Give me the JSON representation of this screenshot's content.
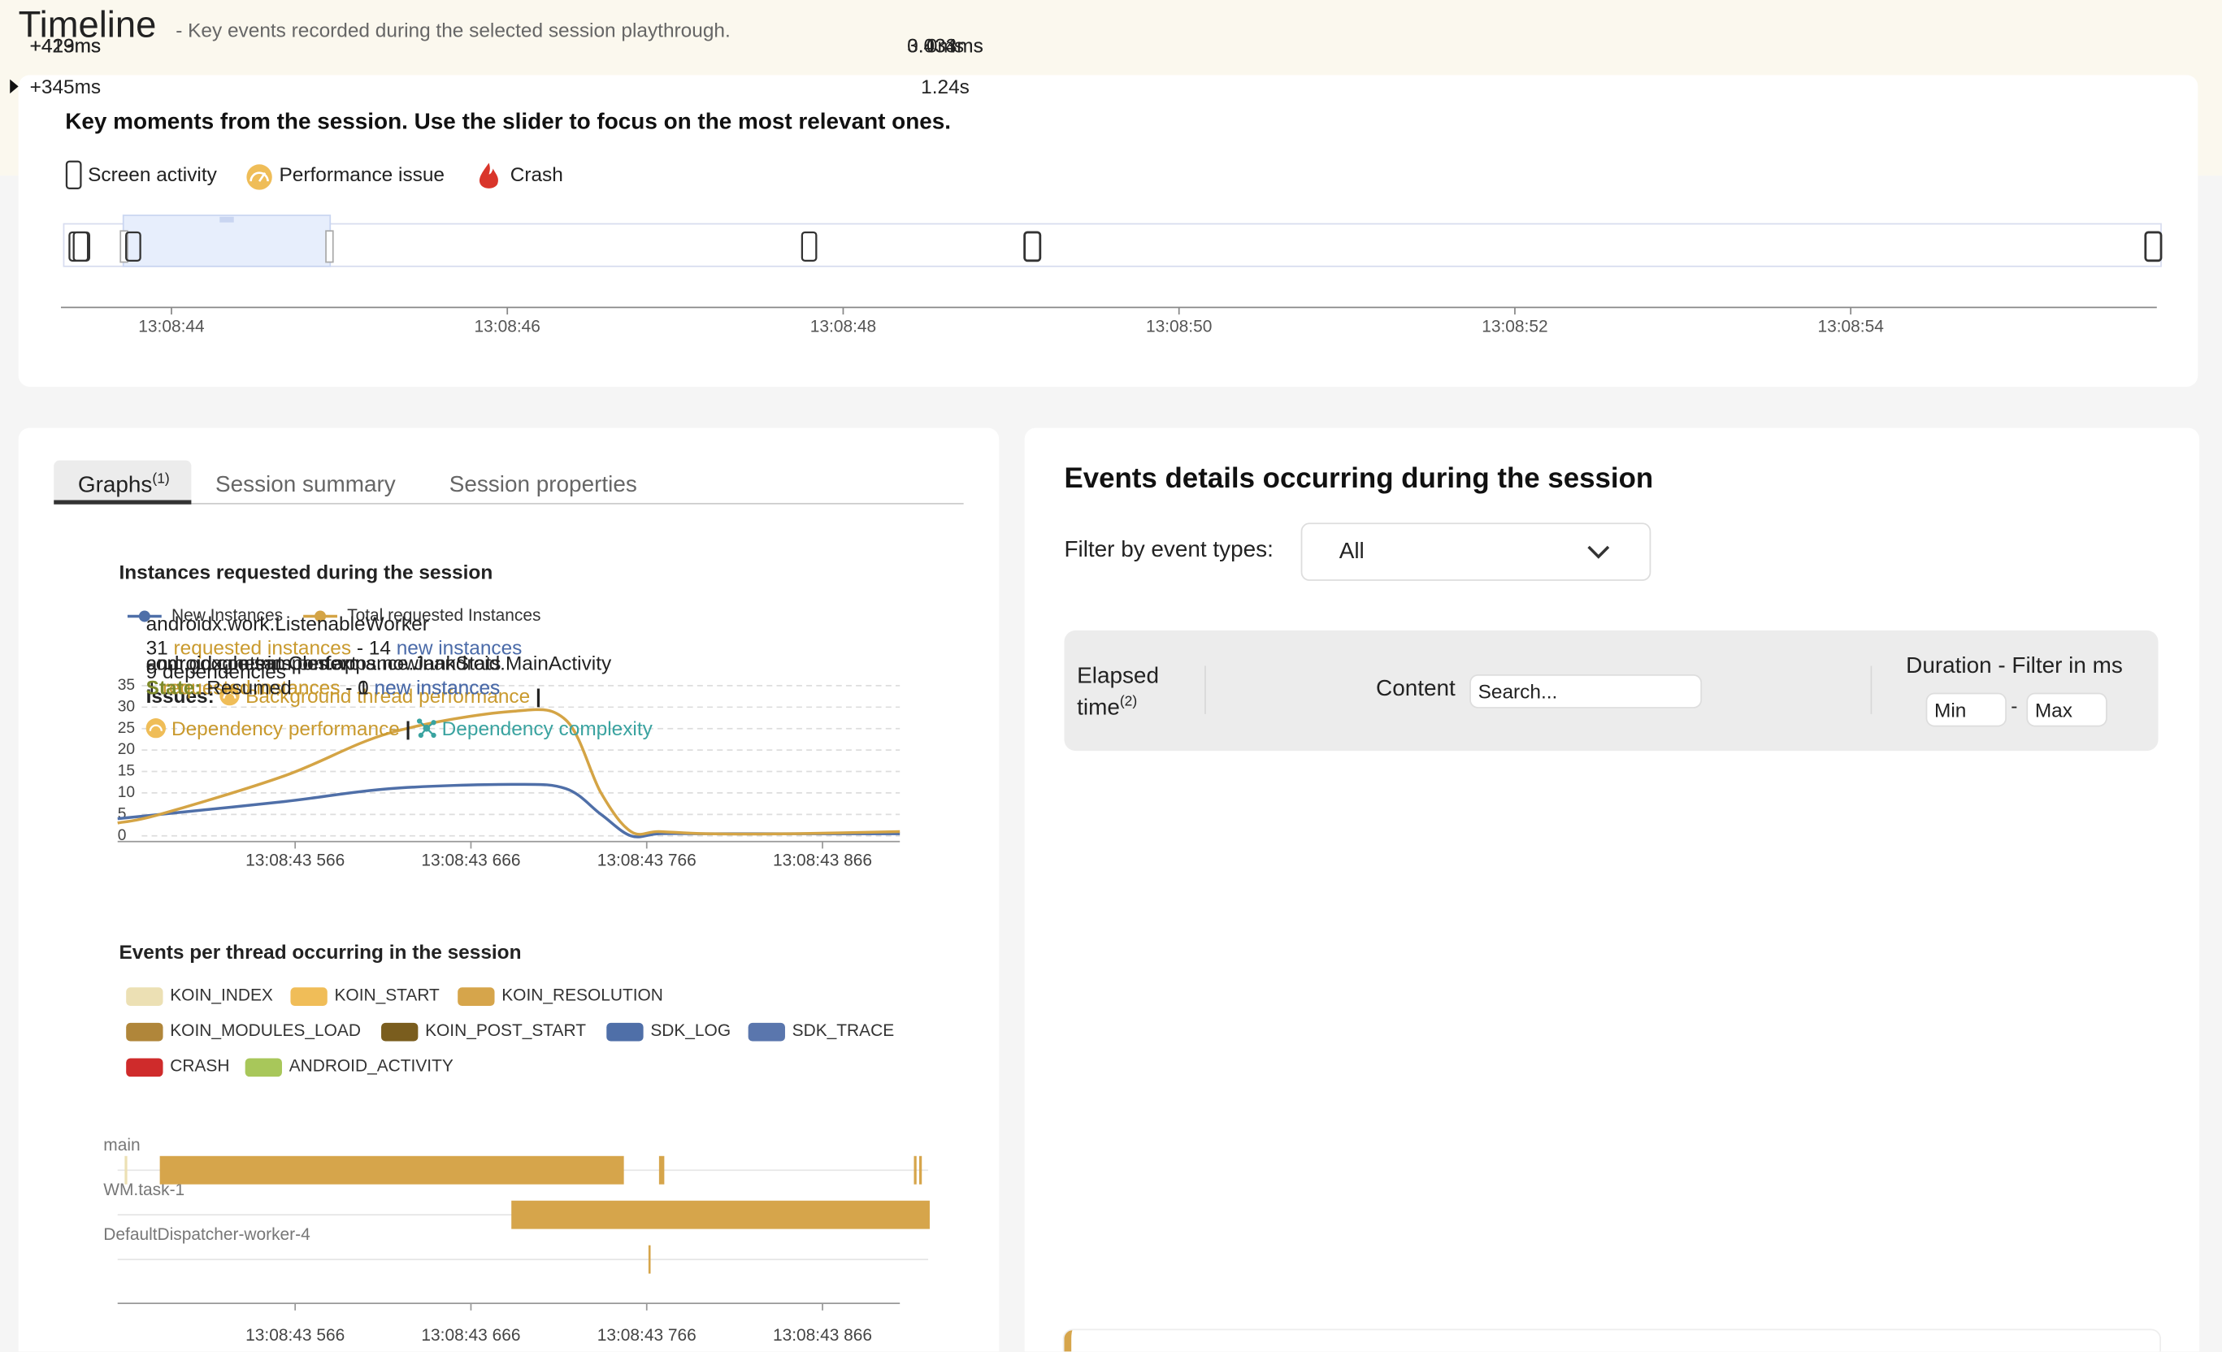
{
  "header": {
    "title": "Timeline",
    "subtitle": "- Key events recorded during the selected session playthrough."
  },
  "timeline": {
    "heading": "Key moments from the session. Use the slider to focus on the most relevant ones.",
    "legend": [
      "Screen activity",
      "Performance issue",
      "Crash"
    ],
    "ticks": [
      "13:08:44",
      "13:08:46",
      "13:08:48",
      "13:08:50",
      "13:08:52",
      "13:08:54"
    ]
  },
  "tabs": {
    "items": [
      "Graphs",
      "Session summary",
      "Session properties"
    ],
    "graphs_note": "(1)"
  },
  "chart_data": [
    {
      "type": "line",
      "title": "Instances requested during the session",
      "x": [
        465,
        489,
        560,
        620,
        689,
        720,
        740,
        757,
        773,
        800,
        850,
        910
      ],
      "series": [
        {
          "name": "New Instances",
          "color": "#4f6fa8",
          "values": [
            4,
            5,
            8,
            11,
            12,
            11,
            5,
            0,
            0.5,
            0.5,
            0.5,
            0.5
          ]
        },
        {
          "name": "Total requested Instances",
          "color": "#d4a445",
          "values": [
            3,
            5,
            14,
            24,
            29,
            27,
            10,
            1,
            1,
            0.5,
            0.5,
            1
          ]
        }
      ],
      "xlim": [
        465,
        910
      ],
      "xticks": [
        {
          "value": 566,
          "label": "13:08:43 566"
        },
        {
          "value": 666,
          "label": "13:08:43 666"
        },
        {
          "value": 766,
          "label": "13:08:43 766"
        },
        {
          "value": 866,
          "label": "13:08:43 866"
        }
      ],
      "ylim": [
        0,
        35
      ],
      "yticks": [
        0,
        5,
        10,
        15,
        20,
        25,
        30,
        35
      ],
      "grid": true
    },
    {
      "type": "gantt",
      "title": "Events per thread occurring in the session",
      "legend": [
        {
          "name": "KOIN_INDEX",
          "color": "#ece0b4"
        },
        {
          "name": "KOIN_START",
          "color": "#f0bd58"
        },
        {
          "name": "KOIN_RESOLUTION",
          "color": "#d6a54b"
        },
        {
          "name": "KOIN_MODULES_LOAD",
          "color": "#b0863a"
        },
        {
          "name": "KOIN_POST_START",
          "color": "#7a5d1e"
        },
        {
          "name": "SDK_LOG",
          "color": "#4f6fa8"
        },
        {
          "name": "SDK_TRACE",
          "color": "#5a76ad"
        },
        {
          "name": "CRASH",
          "color": "#cf2b2b"
        },
        {
          "name": "ANDROID_ACTIVITY",
          "color": "#a8c75a"
        }
      ],
      "threads": [
        "main",
        "WM.task-1",
        "DefaultDispatcher-worker-4"
      ],
      "segments": [
        {
          "thread": "main",
          "kind": "KOIN_INDEX",
          "start": 469,
          "end": 470.5
        },
        {
          "thread": "main",
          "kind": "KOIN_RESOLUTION",
          "start": 489,
          "end": 753
        },
        {
          "thread": "main",
          "kind": "KOIN_RESOLUTION",
          "start": 773,
          "end": 776
        },
        {
          "thread": "main",
          "kind": "KOIN_RESOLUTION",
          "start": 918,
          "end": 919.5
        },
        {
          "thread": "main",
          "kind": "KOIN_RESOLUTION",
          "start": 921,
          "end": 922.5
        },
        {
          "thread": "WM.task-1",
          "kind": "KOIN_RESOLUTION",
          "start": 689,
          "end": 927
        },
        {
          "thread": "DefaultDispatcher-worker-4",
          "kind": "KOIN_RESOLUTION",
          "start": 767,
          "end": 768
        }
      ],
      "xlim": [
        465,
        910
      ],
      "xticks": [
        {
          "value": 566,
          "label": "13:08:43 566"
        },
        {
          "value": 666,
          "label": "13:08:43 666"
        },
        {
          "value": 766,
          "label": "13:08:43 766"
        },
        {
          "value": 866,
          "label": "13:08:43 866"
        }
      ]
    }
  ],
  "events": {
    "title": "Events details occurring during the session",
    "filter_label": "Filter by event types:",
    "filter_value": "All",
    "columns": {
      "elapsed": "Elapsed time",
      "elapsed_note": "(2)",
      "content": "Content",
      "search": "Search...",
      "duration": "Duration - Filter in ms",
      "min": "Min",
      "max": "Max"
    },
    "separator": "-",
    "pipe": "|",
    "rows": [
      {
        "elapsed": "+345ms",
        "name": "androidx.work.ListenableWorker",
        "requested": "31",
        "requested_label": "requested instances",
        "new": "14",
        "new_label": "new instances",
        "dependencies": "9 dependencies",
        "issues_label": "Issues:",
        "issues": [
          {
            "text": "Background thread performance",
            "color": "#c99a2e"
          },
          {
            "text": "Dependency performance",
            "color": "#c99a2e"
          },
          {
            "text": "Dependency complexity",
            "color": "#3aa3a0"
          }
        ],
        "duration": "1.24s",
        "color": "#d6a54b",
        "expanded": true
      },
      {
        "elapsed": "+413ms",
        "name": "android.content.Context",
        "requested": "1",
        "requested_label": "requested instances",
        "new": "0",
        "new_label": "new instances",
        "duration": "0.034ms",
        "color": "#d6a54b"
      },
      {
        "elapsed": "+429ms",
        "name": "androidx.metrics.performance.JankStats",
        "requested": "1",
        "requested_label": "requested instances",
        "new": "1",
        "new_label": "new instances",
        "duration": "3.433ms",
        "color": "#d6a54b"
      },
      {
        "elapsed": "+429ms",
        "name": "com.google.samples.apps.nowinandroid.MainActivity",
        "state_label": "State:",
        "state": "Resumed",
        "duration": "0ms",
        "color": "#a8c75a"
      }
    ]
  }
}
